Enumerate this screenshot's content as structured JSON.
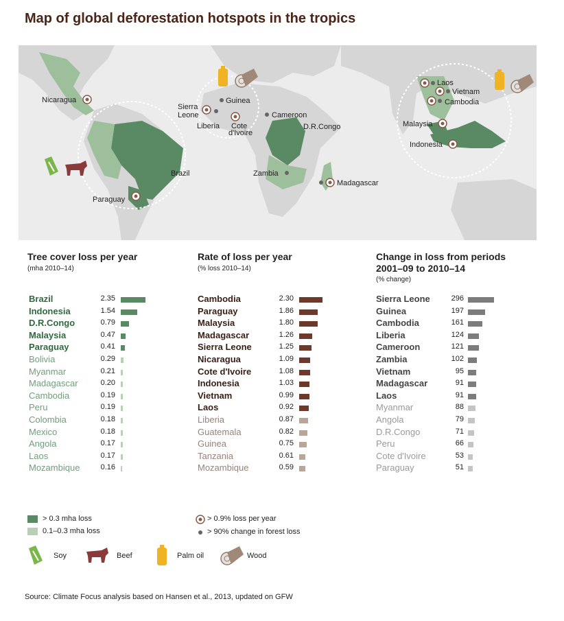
{
  "title": "Map of global deforestation hotspots in the tropics",
  "colors": {
    "dark_green": "#5a8a64",
    "light_green": "#9dbf9b",
    "dark_brown": "#6b3a2a",
    "light_brown": "#b8a69a",
    "dark_gray": "#7c7c7c",
    "light_gray": "#bdbdbd",
    "ocean": "#ececec",
    "land": "#cfcfcf",
    "palm": "#f0b323",
    "soy": "#7ab648",
    "beef": "#8b3a3a"
  },
  "map": {
    "labels": {
      "nicaragua": "Nicaragua",
      "guinea": "Guinea",
      "sierra_leone_1": "Sierra",
      "sierra_leone_2": "Leone",
      "liberia": "Liberia",
      "cote_1": "Cote",
      "cote_2": "d'Ivoire",
      "cameroon": "Cameroon",
      "drc": "D.R.Congo",
      "brazil": "Brazil",
      "paraguay": "Paraguay",
      "zambia": "Zambia",
      "madagascar": "Madagascar",
      "laos": "Laos",
      "vietnam": "Vietnam",
      "cambodia": "Cambodia",
      "malaysia": "Malaysia",
      "indonesia": "Indonesia"
    },
    "icons": [
      "palm-oil-icon",
      "wood-icon",
      "soy-icon",
      "beef-icon"
    ]
  },
  "chart_data": [
    {
      "type": "bar",
      "title": "Tree cover loss per year",
      "subtitle": "(mha 2010–14)",
      "categories": [
        "Brazil",
        "Indonesia",
        "D.R.Congo",
        "Malaysia",
        "Paraguay",
        "Bolivia",
        "Myanmar",
        "Madagascar",
        "Cambodia",
        "Peru",
        "Colombia",
        "Mexico",
        "Angola",
        "Laos",
        "Mozambique"
      ],
      "values": [
        2.35,
        1.54,
        0.79,
        0.47,
        0.41,
        0.29,
        0.21,
        0.2,
        0.19,
        0.19,
        0.18,
        0.18,
        0.17,
        0.17,
        0.16
      ],
      "labels": [
        "2.35",
        "1.54",
        "0.79",
        "0.47",
        "0.41",
        "0.29",
        "0.21",
        "0.20",
        "0.19",
        "0.19",
        "0.18",
        "0.18",
        "0.17",
        "0.17",
        "0.16"
      ],
      "highlight_count": 5
    },
    {
      "type": "bar",
      "title": "Rate of loss per year",
      "subtitle": "(% loss 2010–14)",
      "categories": [
        "Cambodia",
        "Paraguay",
        "Malaysia",
        "Madagascar",
        "Sierra Leone",
        "Nicaragua",
        "Cote d'Ivoire",
        "Indonesia",
        "Vietnam",
        "Laos",
        "Liberia",
        "Guatemala",
        "Guinea",
        "Tanzania",
        "Mozambique"
      ],
      "values": [
        2.3,
        1.86,
        1.8,
        1.26,
        1.25,
        1.09,
        1.08,
        1.03,
        0.99,
        0.92,
        0.87,
        0.82,
        0.75,
        0.61,
        0.59
      ],
      "labels": [
        "2.30",
        "1.86",
        "1.80",
        "1.26",
        "1.25",
        "1.09",
        "1.08",
        "1.03",
        "0.99",
        "0.92",
        "0.87",
        "0.82",
        "0.75",
        "0.61",
        "0.59"
      ],
      "highlight_count": 10
    },
    {
      "type": "bar",
      "title": "Change in loss from periods 2001–09 to 2010–14",
      "title_lines": [
        "Change in loss from periods",
        "2001–09 to 2010–14"
      ],
      "subtitle": "(% change)",
      "categories": [
        "Sierra Leone",
        "Guinea",
        "Cambodia",
        "Liberia",
        "Cameroon",
        "Zambia",
        "Vietnam",
        "Madagascar",
        "Laos",
        "Myanmar",
        "Angola",
        "D.R.Congo",
        "Peru",
        "Cote d'Ivoire",
        "Paraguay"
      ],
      "values": [
        296,
        197,
        161,
        124,
        121,
        102,
        95,
        91,
        91,
        88,
        79,
        71,
        66,
        53,
        51
      ],
      "labels": [
        "296",
        "197",
        "161",
        "124",
        "121",
        "102",
        "95",
        "91",
        "91",
        "88",
        "79",
        "71",
        "66",
        "53",
        "51"
      ],
      "highlight_count": 9
    }
  ],
  "legend": {
    "dark_green": "> 0.3 mha loss",
    "light_green": "0.1–0.3 mha loss",
    "ring_dot": "> 0.9% loss per year",
    "small_dot": "> 90% change in forest loss",
    "soy": "Soy",
    "beef": "Beef",
    "palm": "Palm oil",
    "wood": "Wood"
  },
  "source": "Source: Climate Focus analysis based on Hansen et al., 2013, updated on GFW"
}
